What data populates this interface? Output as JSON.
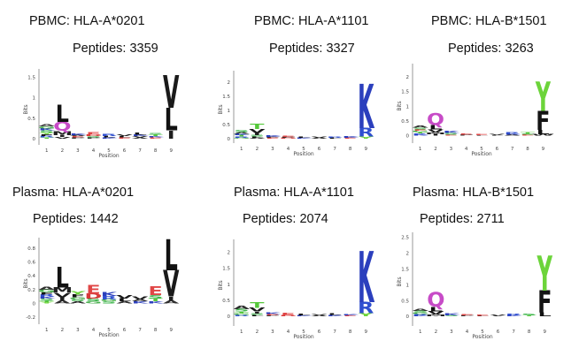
{
  "chart_data": [
    {
      "type": "sequence-logo",
      "title": "PBMC: HLA-A*0201",
      "subtitle": "Peptides: 3359",
      "xlabel": "Position",
      "ylabel": "Bits",
      "positions": [
        "1",
        "2",
        "3",
        "4",
        "5",
        "6",
        "7",
        "8",
        "9"
      ],
      "yticks": [
        "0",
        "0.5",
        "1",
        "1.5"
      ],
      "ylim": [
        -0.15,
        1.7
      ],
      "letters": [
        [
          {
            "l": "A",
            "h": 0.06
          },
          {
            "l": "S",
            "h": 0.05
          },
          {
            "l": "K",
            "h": 0.05
          },
          {
            "l": "G",
            "h": 0.05
          },
          {
            "l": "R",
            "h": 0.04
          },
          {
            "l": "F",
            "h": 0.04
          },
          {
            "l": "Y",
            "h": 0.04
          },
          {
            "l": "T",
            "h": 0.03
          }
        ],
        [
          {
            "l": "L",
            "h": 0.42
          },
          {
            "l": "Q",
            "h": 0.22
          },
          {
            "l": "M",
            "h": 0.1
          },
          {
            "l": "I",
            "h": 0.05
          },
          {
            "l": "V",
            "h": 0.04
          }
        ],
        [
          {
            "l": "K",
            "h": 0.04
          },
          {
            "l": "P",
            "h": 0.03
          },
          {
            "l": "E",
            "h": 0.03
          },
          {
            "l": "A",
            "h": 0.03
          }
        ],
        [
          {
            "l": "E",
            "h": 0.05
          },
          {
            "l": "S",
            "h": 0.04
          },
          {
            "l": "D",
            "h": 0.04
          },
          {
            "l": "P",
            "h": 0.03
          }
        ],
        [
          {
            "l": "R",
            "h": 0.05
          },
          {
            "l": "L",
            "h": 0.04
          },
          {
            "l": "K",
            "h": 0.03
          }
        ],
        [
          {
            "l": "V",
            "h": 0.04
          },
          {
            "l": "E",
            "h": 0.03
          },
          {
            "l": "L",
            "h": 0.03
          }
        ],
        [
          {
            "l": "L",
            "h": 0.05
          },
          {
            "l": "K",
            "h": 0.04
          },
          {
            "l": "A",
            "h": 0.03
          },
          {
            "l": "V",
            "h": 0.03
          }
        ],
        [
          {
            "l": "T",
            "h": 0.04
          },
          {
            "l": "S",
            "h": 0.04
          },
          {
            "l": "E",
            "h": 0.03
          },
          {
            "l": "K",
            "h": 0.03
          }
        ],
        [
          {
            "l": "V",
            "h": 0.8
          },
          {
            "l": "L",
            "h": 0.55
          },
          {
            "l": "I",
            "h": 0.2
          }
        ]
      ]
    },
    {
      "type": "sequence-logo",
      "title": "PBMC: HLA-A*1101",
      "subtitle": "Peptides: 3327",
      "xlabel": "Position",
      "ylabel": "Bits",
      "positions": [
        "1",
        "2",
        "3",
        "4",
        "5",
        "6",
        "7",
        "8",
        "9"
      ],
      "yticks": [
        "0",
        "0.5",
        "1",
        "1.5",
        "2"
      ],
      "ylim": [
        -0.15,
        2.4
      ],
      "letters": [
        [
          {
            "l": "S",
            "h": 0.08
          },
          {
            "l": "A",
            "h": 0.06
          },
          {
            "l": "T",
            "h": 0.05
          },
          {
            "l": "K",
            "h": 0.05
          },
          {
            "l": "G",
            "h": 0.04
          },
          {
            "l": "R",
            "h": 0.04
          }
        ],
        [
          {
            "l": "T",
            "h": 0.18
          },
          {
            "l": "V",
            "h": 0.14
          },
          {
            "l": "I",
            "h": 0.07
          },
          {
            "l": "S",
            "h": 0.05
          },
          {
            "l": "A",
            "h": 0.04
          },
          {
            "l": "L",
            "h": 0.04
          }
        ],
        [
          {
            "l": "K",
            "h": 0.05
          },
          {
            "l": "P",
            "h": 0.04
          },
          {
            "l": "E",
            "h": 0.03
          }
        ],
        [
          {
            "l": "E",
            "h": 0.04
          },
          {
            "l": "D",
            "h": 0.03
          },
          {
            "l": "P",
            "h": 0.03
          }
        ],
        [
          {
            "l": "L",
            "h": 0.04
          },
          {
            "l": "K",
            "h": 0.03
          }
        ],
        [
          {
            "l": "V",
            "h": 0.04
          },
          {
            "l": "A",
            "h": 0.03
          }
        ],
        [
          {
            "l": "R",
            "h": 0.04
          },
          {
            "l": "L",
            "h": 0.03
          }
        ],
        [
          {
            "l": "K",
            "h": 0.05
          },
          {
            "l": "E",
            "h": 0.03
          }
        ],
        [
          {
            "l": "K",
            "h": 1.55
          },
          {
            "l": "R",
            "h": 0.3
          },
          {
            "l": "Y",
            "h": 0.08
          }
        ]
      ]
    },
    {
      "type": "sequence-logo",
      "title": "PBMC: HLA-B*1501",
      "subtitle": "Peptides: 3263",
      "xlabel": "Position",
      "ylabel": "Bits",
      "positions": [
        "1",
        "2",
        "3",
        "4",
        "5",
        "6",
        "7",
        "8",
        "9"
      ],
      "yticks": [
        "0",
        "0.5",
        "1",
        "1.5",
        "2"
      ],
      "ylim": [
        -0.25,
        2.45
      ],
      "letters": [
        [
          {
            "l": "A",
            "h": 0.07
          },
          {
            "l": "S",
            "h": 0.06
          },
          {
            "l": "G",
            "h": 0.05
          },
          {
            "l": "E",
            "h": 0.05
          },
          {
            "l": "K",
            "h": 0.04
          },
          {
            "l": "R",
            "h": 0.04
          },
          {
            "l": "T",
            "h": 0.04
          }
        ],
        [
          {
            "l": "Q",
            "h": 0.4
          },
          {
            "l": "L",
            "h": 0.15
          },
          {
            "l": "V",
            "h": 0.1
          },
          {
            "l": "M",
            "h": 0.06
          },
          {
            "l": "I",
            "h": 0.05
          }
        ],
        [
          {
            "l": "K",
            "h": 0.07
          },
          {
            "l": "S",
            "h": 0.05
          },
          {
            "l": "E",
            "h": 0.04
          }
        ],
        [
          {
            "l": "E",
            "h": 0.04
          },
          {
            "l": "P",
            "h": 0.03
          }
        ],
        [
          {
            "l": "E",
            "h": 0.03
          },
          {
            "l": "L",
            "h": 0.02
          }
        ],
        [
          {
            "l": "V",
            "h": 0.03
          },
          {
            "l": "L",
            "h": 0.02
          }
        ],
        [
          {
            "l": "R",
            "h": 0.05
          },
          {
            "l": "K",
            "h": 0.04
          },
          {
            "l": "A",
            "h": 0.03
          }
        ],
        [
          {
            "l": "T",
            "h": 0.05
          },
          {
            "l": "S",
            "h": 0.04
          },
          {
            "l": "E",
            "h": 0.03
          }
        ],
        [
          {
            "l": "Y",
            "h": 1.0
          },
          {
            "l": "F",
            "h": 0.65
          },
          {
            "l": "L",
            "h": 0.15
          },
          {
            "l": "W",
            "h": 0.05
          }
        ]
      ]
    },
    {
      "type": "sequence-logo",
      "title": "Plasma: HLA-A*0201",
      "subtitle": "Peptides: 1442",
      "xlabel": "Position",
      "ylabel": "Bits",
      "positions": [
        "1",
        "2",
        "3",
        "4",
        "5",
        "6",
        "7",
        "8",
        "9"
      ],
      "yticks": [
        "-0.2",
        "0",
        "0.2",
        "0.4",
        "0.6",
        "0.8"
      ],
      "ylim": [
        -0.3,
        0.95
      ],
      "letters": [
        [
          {
            "l": "G",
            "h": 0.04
          },
          {
            "l": "A",
            "h": 0.04
          },
          {
            "l": "S",
            "h": 0.03
          },
          {
            "l": "K",
            "h": 0.03
          },
          {
            "l": "R",
            "h": 0.03
          },
          {
            "l": "F",
            "h": 0.03
          },
          {
            "l": "Y",
            "h": 0.02
          },
          {
            "l": "T",
            "h": 0.02
          }
        ],
        [
          {
            "l": "L",
            "h": 0.3
          },
          {
            "l": "M",
            "h": 0.08
          },
          {
            "l": "V",
            "h": 0.06
          },
          {
            "l": "I",
            "h": 0.05
          },
          {
            "l": "A",
            "h": 0.04
          }
        ],
        [
          {
            "l": "Y",
            "h": 0.05
          },
          {
            "l": "F",
            "h": 0.04
          },
          {
            "l": "A",
            "h": 0.03
          },
          {
            "l": "S",
            "h": 0.03
          },
          {
            "l": "G",
            "h": 0.03
          }
        ],
        [
          {
            "l": "E",
            "h": 0.12
          },
          {
            "l": "D",
            "h": 0.07
          },
          {
            "l": "S",
            "h": 0.04
          },
          {
            "l": "G",
            "h": 0.03
          }
        ],
        [
          {
            "l": "K",
            "h": 0.06
          },
          {
            "l": "R",
            "h": 0.05
          },
          {
            "l": "S",
            "h": 0.03
          },
          {
            "l": "G",
            "h": 0.03
          }
        ],
        [
          {
            "l": "V",
            "h": 0.05
          },
          {
            "l": "L",
            "h": 0.04
          },
          {
            "l": "A",
            "h": 0.03
          }
        ],
        [
          {
            "l": "V",
            "h": 0.04
          },
          {
            "l": "K",
            "h": 0.03
          },
          {
            "l": "A",
            "h": 0.03
          }
        ],
        [
          {
            "l": "E",
            "h": 0.12
          },
          {
            "l": "S",
            "h": 0.05
          },
          {
            "l": "T",
            "h": 0.04
          },
          {
            "l": "K",
            "h": 0.03
          }
        ],
        [
          {
            "l": "L",
            "h": 0.45
          },
          {
            "l": "V",
            "h": 0.38
          },
          {
            "l": "I",
            "h": 0.06
          },
          {
            "l": "A",
            "h": 0.04
          }
        ]
      ]
    },
    {
      "type": "sequence-logo",
      "title": "Plasma: HLA-A*1101",
      "subtitle": "Peptides: 2074",
      "xlabel": "Position",
      "ylabel": "Bits",
      "positions": [
        "1",
        "2",
        "3",
        "4",
        "5",
        "6",
        "7",
        "8",
        "9"
      ],
      "yticks": [
        "0",
        "0.5",
        "1",
        "1.5",
        "2"
      ],
      "ylim": [
        -0.3,
        2.4
      ],
      "letters": [
        [
          {
            "l": "A",
            "h": 0.1
          },
          {
            "l": "S",
            "h": 0.08
          },
          {
            "l": "T",
            "h": 0.06
          },
          {
            "l": "G",
            "h": 0.05
          },
          {
            "l": "R",
            "h": 0.04
          }
        ],
        [
          {
            "l": "T",
            "h": 0.18
          },
          {
            "l": "V",
            "h": 0.12
          },
          {
            "l": "I",
            "h": 0.06
          },
          {
            "l": "S",
            "h": 0.05
          },
          {
            "l": "L",
            "h": 0.04
          }
        ],
        [
          {
            "l": "K",
            "h": 0.06
          },
          {
            "l": "E",
            "h": 0.04
          },
          {
            "l": "P",
            "h": 0.03
          }
        ],
        [
          {
            "l": "E",
            "h": 0.07
          },
          {
            "l": "D",
            "h": 0.04
          }
        ],
        [
          {
            "l": "L",
            "h": 0.05
          },
          {
            "l": "K",
            "h": 0.03
          }
        ],
        [
          {
            "l": "V",
            "h": 0.04
          },
          {
            "l": "A",
            "h": 0.03
          }
        ],
        [
          {
            "l": "L",
            "h": 0.06
          },
          {
            "l": "K",
            "h": 0.04
          }
        ],
        [
          {
            "l": "K",
            "h": 0.04
          },
          {
            "l": "E",
            "h": 0.03
          }
        ],
        [
          {
            "l": "K",
            "h": 1.6
          },
          {
            "l": "R",
            "h": 0.35
          },
          {
            "l": "Y",
            "h": 0.1
          }
        ]
      ]
    },
    {
      "type": "sequence-logo",
      "title": "Plasma: HLA-B*1501",
      "subtitle": "Peptides: 2711",
      "xlabel": "Position",
      "ylabel": "Bits",
      "positions": [
        "1",
        "2",
        "3",
        "4",
        "5",
        "6",
        "7",
        "8",
        "9"
      ],
      "yticks": [
        "0",
        "0.5",
        "1",
        "1.5",
        "2",
        "2.5"
      ],
      "ylim": [
        -0.3,
        2.65
      ],
      "letters": [
        [
          {
            "l": "A",
            "h": 0.07
          },
          {
            "l": "G",
            "h": 0.05
          },
          {
            "l": "S",
            "h": 0.05
          },
          {
            "l": "K",
            "h": 0.04
          },
          {
            "l": "R",
            "h": 0.04
          }
        ],
        [
          {
            "l": "Q",
            "h": 0.45
          },
          {
            "l": "L",
            "h": 0.15
          },
          {
            "l": "V",
            "h": 0.1
          },
          {
            "l": "M",
            "h": 0.06
          }
        ],
        [
          {
            "l": "K",
            "h": 0.07
          },
          {
            "l": "S",
            "h": 0.04
          }
        ],
        [
          {
            "l": "E",
            "h": 0.04
          },
          {
            "l": "P",
            "h": 0.03
          }
        ],
        [
          {
            "l": "E",
            "h": 0.03
          },
          {
            "l": "L",
            "h": 0.02
          }
        ],
        [
          {
            "l": "V",
            "h": 0.03
          },
          {
            "l": "L",
            "h": 0.02
          }
        ],
        [
          {
            "l": "R",
            "h": 0.05
          },
          {
            "l": "K",
            "h": 0.04
          }
        ],
        [
          {
            "l": "S",
            "h": 0.05
          },
          {
            "l": "T",
            "h": 0.04
          }
        ],
        [
          {
            "l": "Y",
            "h": 1.1
          },
          {
            "l": "F",
            "h": 0.7
          },
          {
            "l": "L",
            "h": 0.12
          }
        ]
      ]
    }
  ],
  "letter_colors": {
    "A": "#2e2e2e",
    "V": "#1a1a1a",
    "L": "#111111",
    "I": "#1e1e1e",
    "M": "#222222",
    "F": "#141414",
    "W": "#1a1a1a",
    "P": "#333333",
    "G": "#4caf50",
    "C": "#4caf50",
    "S": "#3cb44b",
    "T": "#55c83a",
    "Y": "#6cd43a",
    "N": "#c03ac0",
    "Q": "#c74bc7",
    "K": "#2b3fbd",
    "R": "#2f4fd0",
    "H": "#3b5ad6",
    "D": "#d83a3a",
    "E": "#e04646"
  }
}
